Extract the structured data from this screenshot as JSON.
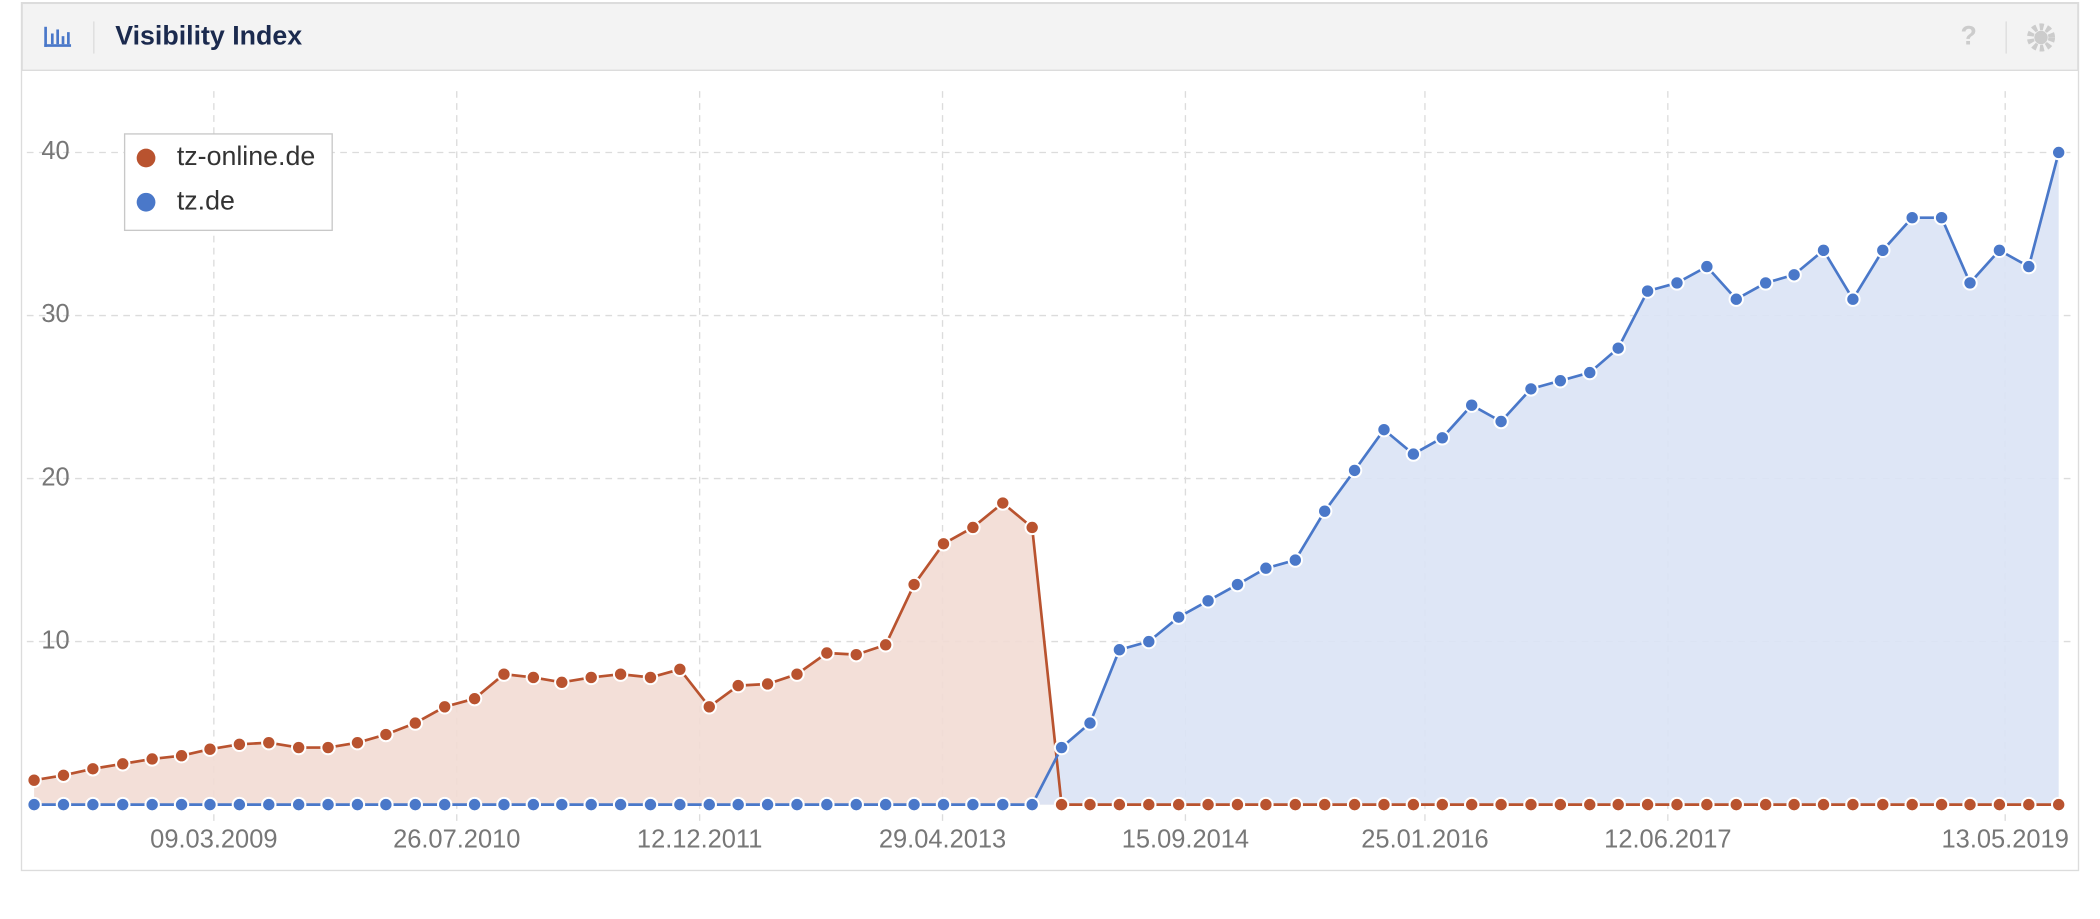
{
  "header": {
    "title": "Visibility Index"
  },
  "chart_data": {
    "type": "area",
    "x": [
      "01.03.2008",
      "01.05.2008",
      "01.07.2008",
      "01.09.2008",
      "01.11.2008",
      "01.01.2009",
      "01.03.2009",
      "01.05.2009",
      "01.07.2009",
      "01.09.2009",
      "01.11.2009",
      "01.01.2010",
      "01.03.2010",
      "01.05.2010",
      "01.07.2010",
      "01.09.2010",
      "01.11.2010",
      "01.01.2011",
      "01.03.2011",
      "01.05.2011",
      "01.07.2011",
      "01.09.2011",
      "01.11.2011",
      "01.01.2012",
      "01.03.2012",
      "01.05.2012",
      "01.07.2012",
      "01.09.2012",
      "01.11.2012",
      "01.01.2013",
      "01.03.2013",
      "01.05.2013",
      "01.07.2013",
      "01.09.2013",
      "01.11.2013",
      "01.01.2014",
      "01.03.2014",
      "01.05.2014",
      "01.07.2014",
      "01.09.2014",
      "01.11.2014",
      "01.01.2015",
      "01.03.2015",
      "01.05.2015",
      "01.07.2015",
      "01.09.2015",
      "01.11.2015",
      "01.01.2016",
      "01.03.2016",
      "01.05.2016",
      "01.07.2016",
      "01.09.2016",
      "01.11.2016",
      "01.01.2017",
      "01.03.2017",
      "01.05.2017",
      "01.07.2017",
      "01.09.2017",
      "01.11.2017",
      "01.01.2018",
      "01.03.2018",
      "01.05.2018",
      "01.07.2018",
      "01.09.2018",
      "01.11.2018",
      "01.01.2019",
      "01.03.2019",
      "01.05.2019",
      "01.07.2019",
      "01.09.2019"
    ],
    "series": [
      {
        "name": "tz-online.de",
        "color": "#b9532f",
        "fill": "#f2dcd4",
        "values": [
          1.5,
          1.8,
          2.2,
          2.5,
          2.8,
          3.0,
          3.4,
          3.7,
          3.8,
          3.5,
          3.5,
          3.8,
          4.3,
          5.0,
          6.0,
          6.5,
          8.0,
          7.8,
          7.5,
          7.8,
          8.0,
          7.8,
          8.3,
          6.0,
          7.3,
          7.4,
          8.0,
          9.3,
          9.2,
          9.8,
          13.5,
          16.0,
          17.0,
          18.5,
          17.0,
          0,
          0,
          0,
          0,
          0,
          0,
          0,
          0,
          0,
          0,
          0,
          0,
          0,
          0,
          0,
          0,
          0,
          0,
          0,
          0,
          0,
          0,
          0,
          0,
          0,
          0,
          0,
          0,
          0,
          0,
          0,
          0,
          0,
          0,
          0
        ]
      },
      {
        "name": "tz.de",
        "color": "#4a78c9",
        "fill": "#dae3f5",
        "values": [
          0,
          0,
          0,
          0,
          0,
          0,
          0,
          0,
          0,
          0,
          0,
          0,
          0,
          0,
          0,
          0,
          0,
          0,
          0,
          0,
          0,
          0,
          0,
          0,
          0,
          0,
          0,
          0,
          0,
          0,
          0,
          0,
          0,
          0,
          0,
          3.5,
          5.0,
          9.5,
          10.0,
          11.5,
          12.5,
          13.5,
          14.5,
          15.0,
          18.0,
          20.5,
          23.0,
          21.5,
          22.5,
          24.5,
          23.5,
          25.5,
          26.0,
          26.5,
          28.0,
          31.5,
          32.0,
          33.0,
          31.0,
          32.0,
          32.5,
          34.0,
          31.0,
          34.0,
          36.0,
          36.0,
          32.0,
          34.0,
          33.0,
          40.0
        ]
      }
    ],
    "xlim": [
      "15.02.2008",
      "01.10.2019"
    ],
    "xticks": [
      "09.03.2009",
      "26.07.2010",
      "12.12.2011",
      "29.04.2013",
      "15.09.2014",
      "25.01.2016",
      "12.06.2017",
      "13.05.2019"
    ],
    "ylim": [
      -1,
      45
    ],
    "yticks": [
      10,
      20,
      30,
      40
    ],
    "grid": true,
    "legend": "upper left"
  }
}
